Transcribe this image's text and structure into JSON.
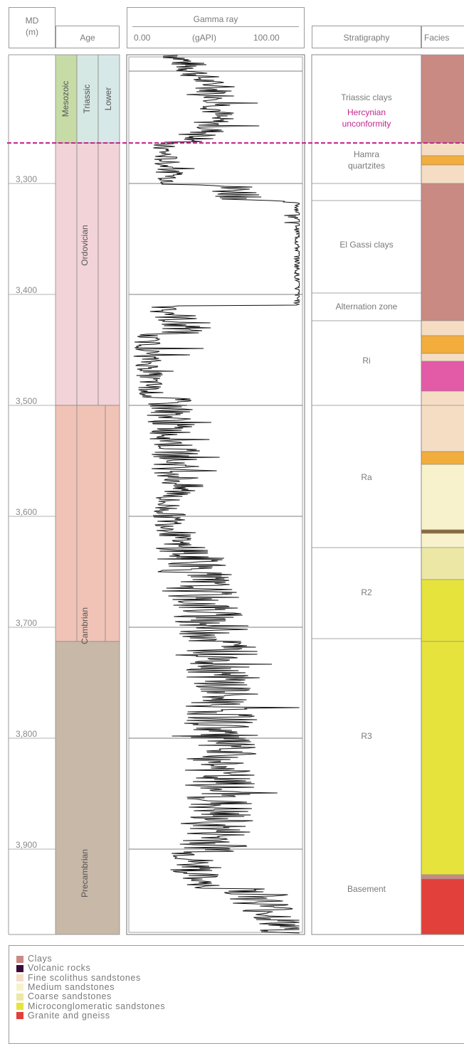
{
  "header": {
    "md_label": "MD",
    "md_unit": "(m)",
    "age_label": "Age",
    "gamma_title": "Gamma ray",
    "gamma_min": "0.00",
    "gamma_unit": "(gAPI)",
    "gamma_max": "100.00",
    "strat_label": "Stratigraphy",
    "facies_label": "Facies"
  },
  "depth_labels": [
    "3,300",
    "3,400",
    "3,500",
    "3,600",
    "3,700",
    "3,800",
    "3,900"
  ],
  "age_units": [
    {
      "name": "Mesozoic",
      "color": "#c7dba7"
    },
    {
      "name": "Triassic",
      "color": "#d6e8e3"
    },
    {
      "name": "Lower",
      "color": "#d6e8e8"
    },
    {
      "name": "Ordovician",
      "color": "#f2d3d8"
    },
    {
      "name": "Cambrian",
      "color": "#f0c3b6"
    },
    {
      "name": "Precambrian",
      "color": "#c8b8a8"
    }
  ],
  "stratigraphy": [
    {
      "label": "Triassic clays"
    },
    {
      "label": "Hercynian unconformity",
      "color": "#c2278f"
    },
    {
      "label": "Hamra quartzites"
    },
    {
      "label": "El Gassi clays"
    },
    {
      "label": "Alternation zone"
    },
    {
      "label": "Ri"
    },
    {
      "label": "Ra"
    },
    {
      "label": "R2"
    },
    {
      "label": "R3"
    },
    {
      "label": "Basement"
    }
  ],
  "legend": [
    {
      "label": "Clays",
      "color": "#c98a83"
    },
    {
      "label": "Volcanic rocks",
      "color": "#3a0a3a"
    },
    {
      "label": "Fine scolithus sandstones",
      "color": "#f5ddc4"
    },
    {
      "label": "Medium sandstones",
      "color": "#f7f2cc"
    },
    {
      "label": "Coarse sandstones",
      "color": "#ede7a6"
    },
    {
      "label": "Microconglomeratic sandstones",
      "color": "#e7e33d"
    },
    {
      "label": "Granite and gneiss",
      "color": "#e2403a"
    }
  ],
  "colors": {
    "clays": "#c98a83",
    "fine": "#f5ddc4",
    "medium": "#f7f2cc",
    "coarse": "#ede7a6",
    "micro": "#e7e33d",
    "orange": "#f2ad3d",
    "pink": "#e35aa6",
    "granite": "#e2403a",
    "unconformity_line": "#c2278f",
    "curve": "#111111"
  }
}
